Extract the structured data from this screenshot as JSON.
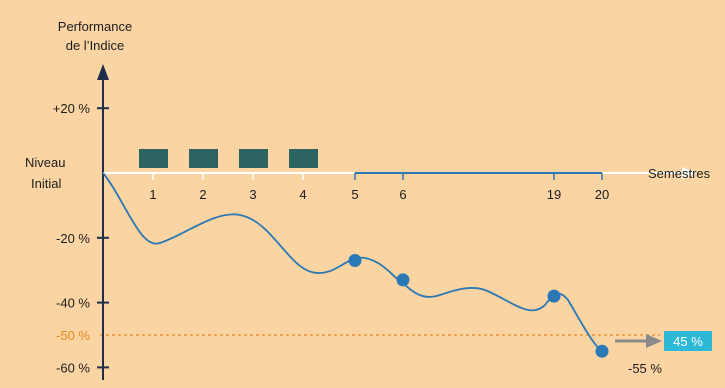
{
  "chart_data": {
    "type": "line",
    "ylabel": [
      "Performance",
      "de l’Indice"
    ],
    "xlabel": "Semestres",
    "origin_label": [
      "Niveau",
      "Initial"
    ],
    "ylim": [
      -65,
      25
    ],
    "y_ticks": [
      {
        "value": 20,
        "label": "+20 %"
      },
      {
        "value": -20,
        "label": "-20 %"
      },
      {
        "value": -40,
        "label": "-40 %"
      },
      {
        "value": -50,
        "label": "-50 %",
        "highlight": true
      },
      {
        "value": -60,
        "label": "-60 %"
      }
    ],
    "x_ticks": [
      {
        "label": "1"
      },
      {
        "label": "2"
      },
      {
        "label": "3"
      },
      {
        "label": "4"
      },
      {
        "label": "5"
      },
      {
        "label": "6"
      },
      {
        "label": "19"
      },
      {
        "label": "20"
      }
    ],
    "observation_boxes": 4,
    "observations": [
      {
        "semestre": "5",
        "value": -27
      },
      {
        "semestre": "6",
        "value": -33
      },
      {
        "semestre": "19",
        "value": -38
      },
      {
        "semestre": "20",
        "value": -55
      }
    ],
    "barrier": {
      "value": -50,
      "label": "-50 %"
    },
    "final_label": "-55 %",
    "payout_badge": "45 %",
    "colors": {
      "background": "#fbd4a4",
      "line": "#2a78b5",
      "axis": "#1f2d4a",
      "box": "#2c6462",
      "barrier": "#e88a1e",
      "badge": "#2cb8d6",
      "arrow": "#8a8a8a"
    }
  }
}
